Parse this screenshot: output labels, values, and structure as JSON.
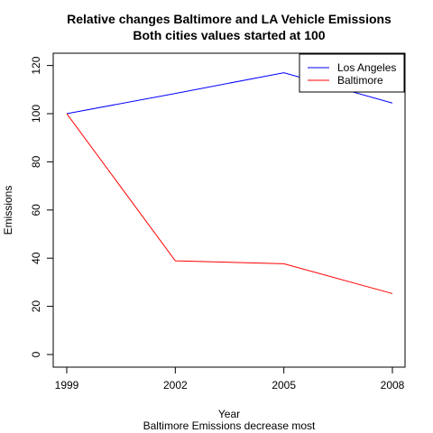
{
  "chart_data": {
    "type": "line",
    "title": "Relative changes Baltimore and LA Vehicle Emissions",
    "subtitle": "Both cities values started at 100",
    "xlabel": "Year",
    "ylabel": "Emissions",
    "sub_caption": "Baltimore Emissions decrease most",
    "x": [
      1999,
      2002,
      2005,
      2008
    ],
    "x_ticks": [
      "1999",
      "2002",
      "2005",
      "2008"
    ],
    "y_ticks": [
      "0",
      "20",
      "40",
      "60",
      "80",
      "100",
      "120"
    ],
    "xlim": [
      1999,
      2008
    ],
    "ylim": [
      -4.2,
      125.3
    ],
    "grid": false,
    "legend_position": "top-right",
    "series": [
      {
        "name": "Los Angeles",
        "color": "#0000ff",
        "values": [
          100,
          108.4,
          117.0,
          104.4
        ]
      },
      {
        "name": "Baltimore",
        "color": "#ff0000",
        "values": [
          100,
          38.9,
          37.7,
          25.3
        ]
      }
    ]
  }
}
